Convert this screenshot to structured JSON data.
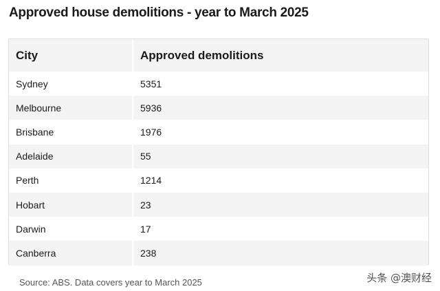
{
  "chart_data": {
    "type": "table",
    "title": "Approved house demolitions - year to March 2025",
    "columns": [
      "City",
      "Approved demolitions"
    ],
    "rows": [
      {
        "city": "Sydney",
        "value": 5351
      },
      {
        "city": "Melbourne",
        "value": 5936
      },
      {
        "city": "Brisbane",
        "value": 1976
      },
      {
        "city": "Adelaide",
        "value": 55
      },
      {
        "city": "Perth",
        "value": 1214
      },
      {
        "city": "Hobart",
        "value": 23
      },
      {
        "city": "Darwin",
        "value": 17
      },
      {
        "city": "Canberra",
        "value": 238
      }
    ],
    "source": "Source: ABS. Data covers year to March 2025"
  },
  "watermark": "头条 @澳财经"
}
